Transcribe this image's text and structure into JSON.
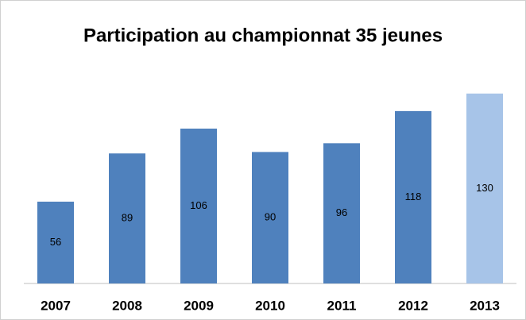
{
  "chart_data": {
    "type": "bar",
    "title": "Participation au championnat 35 jeunes",
    "categories": [
      "2007",
      "2008",
      "2009",
      "2010",
      "2011",
      "2012",
      "2013"
    ],
    "values": [
      56,
      89,
      106,
      90,
      96,
      118,
      130
    ],
    "colors": [
      "#4f81bd",
      "#4f81bd",
      "#4f81bd",
      "#4f81bd",
      "#4f81bd",
      "#4f81bd",
      "#a7c4e8"
    ]
  }
}
